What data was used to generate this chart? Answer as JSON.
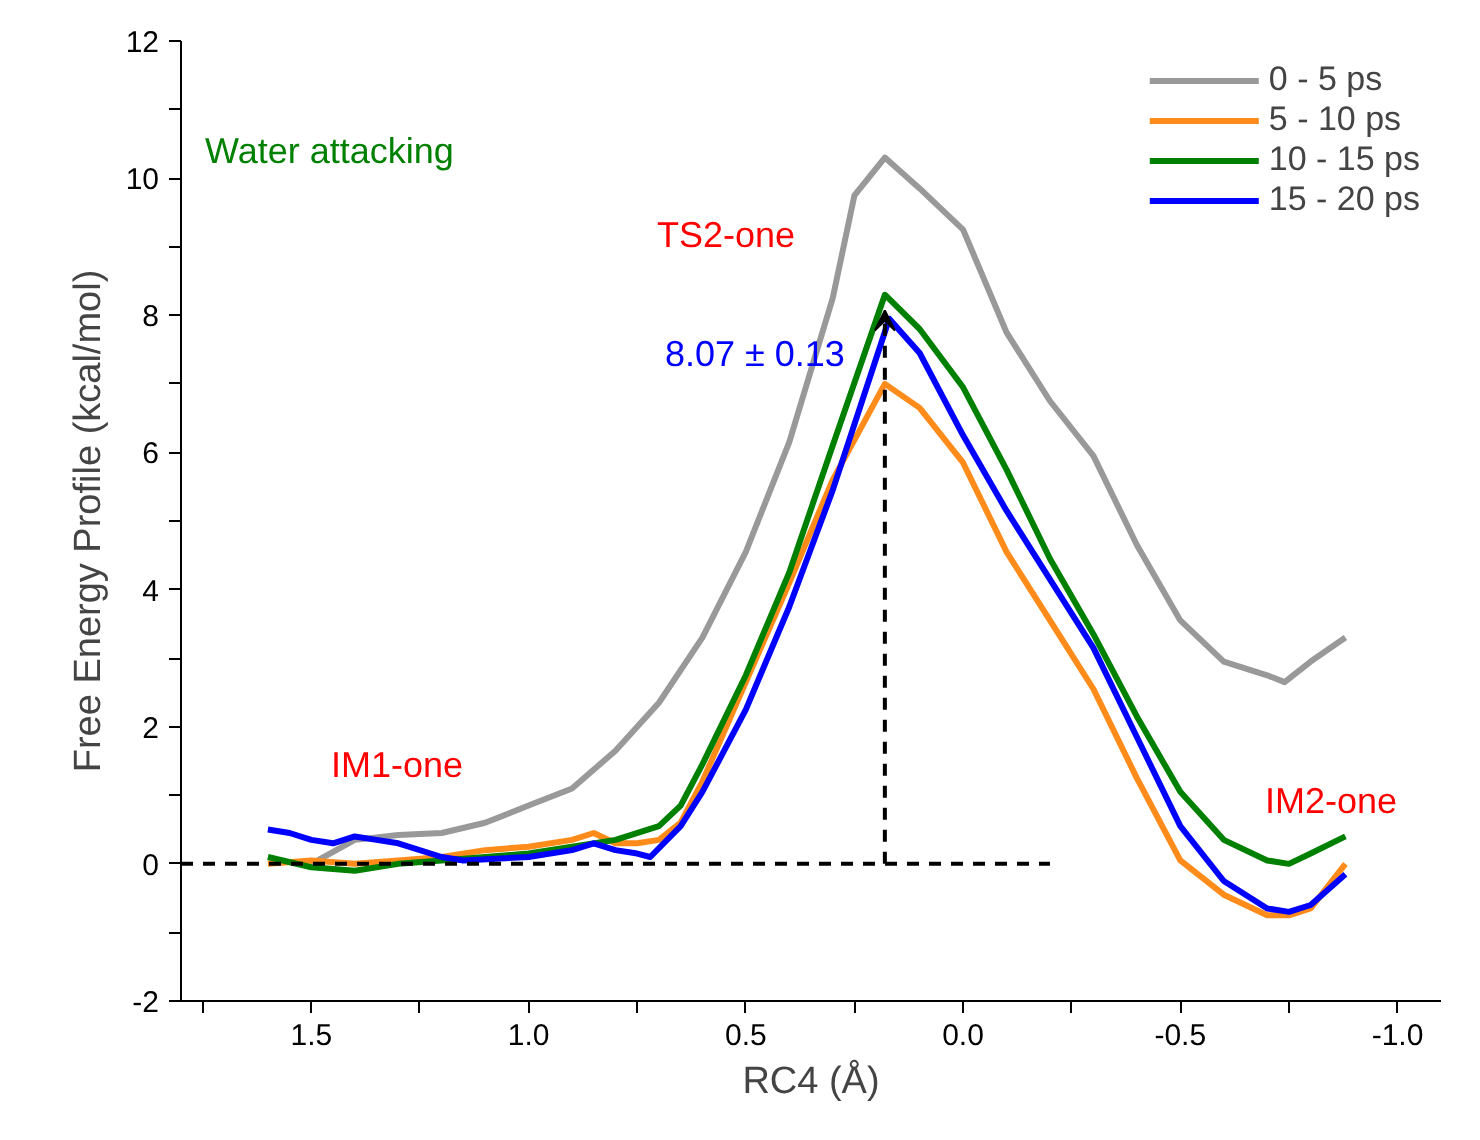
{
  "chart_data": {
    "type": "line",
    "xlabel": "RC4 (Å)",
    "ylabel": "Free Energy Profile (kcal/mol)",
    "xlim": [
      1.8,
      -1.1
    ],
    "xticks": [
      {
        "value": 1.75,
        "label": null
      },
      1.5,
      {
        "value": 1.25,
        "label": null
      },
      {
        "value": 1.0,
        "label": "1.0"
      },
      {
        "value": 0.75,
        "label": null
      },
      0.5,
      {
        "value": 0.25,
        "label": null
      },
      {
        "value": 0.0,
        "label": "0.0"
      },
      {
        "value": -0.25,
        "label": null
      },
      -0.5,
      {
        "value": -0.75,
        "label": null
      },
      {
        "value": -1.0,
        "label": "-1.0"
      }
    ],
    "ylim": [
      -2,
      12
    ],
    "yticks": [
      -2,
      {
        "value": -1,
        "label": null
      },
      0,
      {
        "value": 1,
        "label": null
      },
      2,
      {
        "value": 3,
        "label": null
      },
      4,
      {
        "value": 5,
        "label": null
      },
      6,
      {
        "value": 7,
        "label": null
      },
      8,
      {
        "value": 9,
        "label": null
      },
      10,
      {
        "value": 11,
        "label": null
      },
      12
    ],
    "grid": false,
    "legend": "top right",
    "line_style": "solid",
    "marker": "none",
    "series": [
      {
        "name": "0 - 5 ps",
        "color": "#999999",
        "x": [
          1.5,
          1.4,
          1.3,
          1.2,
          1.1,
          1.0,
          0.9,
          0.8,
          0.7,
          0.6,
          0.5,
          0.4,
          0.3,
          0.25,
          0.18,
          0.1,
          0.0,
          -0.1,
          -0.2,
          -0.3,
          -0.4,
          -0.5,
          -0.6,
          -0.7,
          -0.74,
          -0.8,
          -0.88
        ],
        "values": [
          0.0,
          0.35,
          0.42,
          0.45,
          0.6,
          0.85,
          1.1,
          1.65,
          2.35,
          3.3,
          4.55,
          6.15,
          8.25,
          9.75,
          10.3,
          9.85,
          9.25,
          7.75,
          6.75,
          5.95,
          4.65,
          3.55,
          2.95,
          2.75,
          2.65,
          2.95,
          3.3
        ]
      },
      {
        "name": "5 - 10 ps",
        "color": "#ff8c1a",
        "x": [
          1.6,
          1.5,
          1.4,
          1.3,
          1.2,
          1.1,
          1.0,
          0.9,
          0.85,
          0.8,
          0.75,
          0.7,
          0.65,
          0.6,
          0.5,
          0.4,
          0.3,
          0.18,
          0.1,
          0.0,
          -0.1,
          -0.2,
          -0.3,
          -0.4,
          -0.5,
          -0.6,
          -0.7,
          -0.75,
          -0.8,
          -0.88
        ],
        "values": [
          0.0,
          0.05,
          0.0,
          0.05,
          0.1,
          0.2,
          0.25,
          0.35,
          0.45,
          0.3,
          0.3,
          0.35,
          0.6,
          1.2,
          2.65,
          4.1,
          5.6,
          7.0,
          6.65,
          5.85,
          4.55,
          3.55,
          2.55,
          1.25,
          0.05,
          -0.45,
          -0.75,
          -0.75,
          -0.65,
          0.0
        ]
      },
      {
        "name": "10 - 15 ps",
        "color": "#008000",
        "x": [
          1.6,
          1.5,
          1.4,
          1.3,
          1.2,
          1.0,
          0.9,
          0.8,
          0.7,
          0.65,
          0.6,
          0.5,
          0.4,
          0.3,
          0.18,
          0.1,
          0.0,
          -0.1,
          -0.2,
          -0.3,
          -0.4,
          -0.5,
          -0.6,
          -0.7,
          -0.75,
          -0.8,
          -0.88
        ],
        "values": [
          0.1,
          -0.05,
          -0.1,
          0.0,
          0.05,
          0.15,
          0.25,
          0.35,
          0.55,
          0.85,
          1.45,
          2.75,
          4.25,
          6.1,
          8.3,
          7.8,
          6.95,
          5.75,
          4.45,
          3.35,
          2.15,
          1.05,
          0.35,
          0.05,
          0.0,
          0.15,
          0.4
        ]
      },
      {
        "name": "15 - 20 ps",
        "color": "#0000ff",
        "x": [
          1.6,
          1.55,
          1.5,
          1.45,
          1.4,
          1.35,
          1.3,
          1.2,
          1.15,
          1.0,
          0.9,
          0.85,
          0.8,
          0.75,
          0.72,
          0.65,
          0.6,
          0.5,
          0.4,
          0.3,
          0.17,
          0.1,
          0.0,
          -0.1,
          -0.2,
          -0.3,
          -0.4,
          -0.5,
          -0.6,
          -0.7,
          -0.75,
          -0.8,
          -0.88
        ],
        "values": [
          0.5,
          0.45,
          0.35,
          0.3,
          0.4,
          0.35,
          0.3,
          0.1,
          0.05,
          0.1,
          0.2,
          0.3,
          0.2,
          0.15,
          0.1,
          0.55,
          1.05,
          2.25,
          3.75,
          5.45,
          7.95,
          7.45,
          6.25,
          5.15,
          4.15,
          3.15,
          1.85,
          0.55,
          -0.25,
          -0.65,
          -0.7,
          -0.6,
          -0.15
        ]
      },
      {
        "color": "#000000",
        "line_style": "dashed",
        "x": [
          1.8,
          -0.2
        ],
        "values": [
          0,
          0
        ]
      }
    ],
    "annotations": [
      "Water attacking",
      "TS2-one",
      {
        "text": "8.07 ± 0.13",
        "x": 0.18,
        "y": 8.07
      },
      "IM1-one",
      "IM2-one"
    ]
  }
}
